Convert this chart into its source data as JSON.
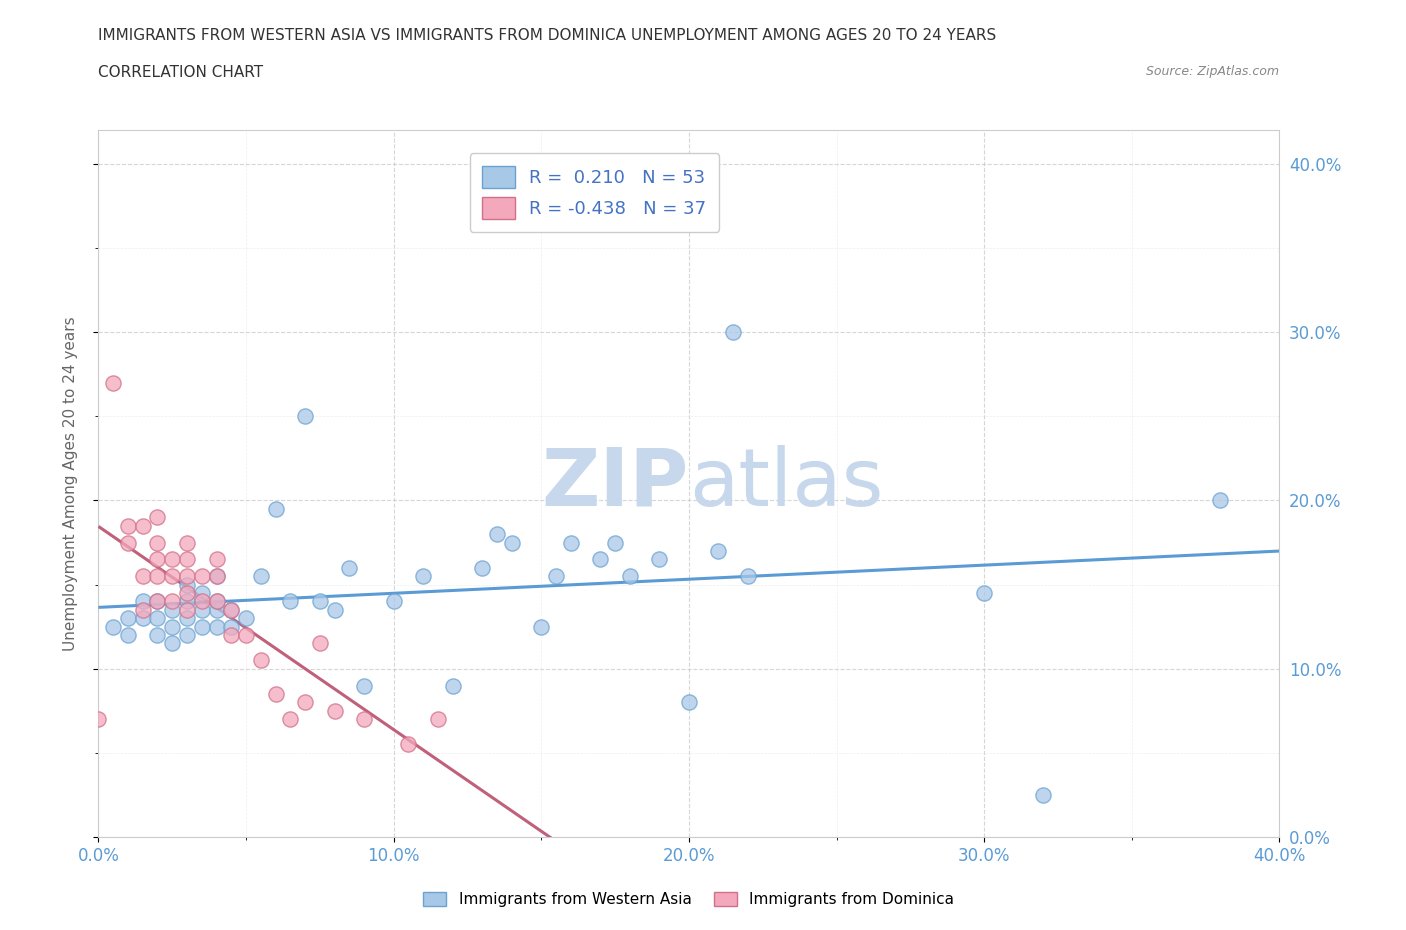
{
  "title_line1": "IMMIGRANTS FROM WESTERN ASIA VS IMMIGRANTS FROM DOMINICA UNEMPLOYMENT AMONG AGES 20 TO 24 YEARS",
  "title_line2": "CORRELATION CHART",
  "source_text": "Source: ZipAtlas.com",
  "xlabel_label": "Immigrants from Western Asia",
  "ylabel_label": "Unemployment Among Ages 20 to 24 years",
  "xmin": 0.0,
  "xmax": 0.4,
  "ymin": 0.0,
  "ymax": 0.42,
  "xtick_vals": [
    0.0,
    0.1,
    0.2,
    0.3,
    0.4
  ],
  "ytick_vals": [
    0.0,
    0.1,
    0.2,
    0.3,
    0.4
  ],
  "ytick_minor_vals": [
    0.05,
    0.15,
    0.25,
    0.35
  ],
  "blue_R": 0.21,
  "blue_N": 53,
  "pink_R": -0.438,
  "pink_N": 37,
  "blue_color": "#A8C8E8",
  "pink_color": "#F4A8BC",
  "blue_edge_color": "#6BA3D0",
  "pink_edge_color": "#D0708A",
  "blue_line_color": "#5B9BD5",
  "pink_line_color": "#C0607A",
  "watermark_color": "#C8D8EC",
  "background_color": "#FFFFFF",
  "blue_scatter_x": [
    0.005,
    0.01,
    0.01,
    0.015,
    0.015,
    0.02,
    0.02,
    0.02,
    0.025,
    0.025,
    0.025,
    0.03,
    0.03,
    0.03,
    0.03,
    0.035,
    0.035,
    0.035,
    0.04,
    0.04,
    0.04,
    0.04,
    0.045,
    0.045,
    0.05,
    0.055,
    0.06,
    0.065,
    0.07,
    0.075,
    0.08,
    0.085,
    0.09,
    0.1,
    0.11,
    0.12,
    0.13,
    0.135,
    0.14,
    0.15,
    0.155,
    0.16,
    0.17,
    0.175,
    0.18,
    0.19,
    0.2,
    0.21,
    0.215,
    0.22,
    0.3,
    0.32,
    0.38
  ],
  "blue_scatter_y": [
    0.125,
    0.12,
    0.13,
    0.13,
    0.14,
    0.12,
    0.13,
    0.14,
    0.115,
    0.125,
    0.135,
    0.12,
    0.13,
    0.14,
    0.15,
    0.125,
    0.135,
    0.145,
    0.125,
    0.135,
    0.14,
    0.155,
    0.125,
    0.135,
    0.13,
    0.155,
    0.195,
    0.14,
    0.25,
    0.14,
    0.135,
    0.16,
    0.09,
    0.14,
    0.155,
    0.09,
    0.16,
    0.18,
    0.175,
    0.125,
    0.155,
    0.175,
    0.165,
    0.175,
    0.155,
    0.165,
    0.08,
    0.17,
    0.3,
    0.155,
    0.145,
    0.025,
    0.2
  ],
  "pink_scatter_x": [
    0.0,
    0.005,
    0.01,
    0.01,
    0.015,
    0.015,
    0.015,
    0.02,
    0.02,
    0.02,
    0.02,
    0.02,
    0.025,
    0.025,
    0.025,
    0.03,
    0.03,
    0.03,
    0.03,
    0.03,
    0.035,
    0.035,
    0.04,
    0.04,
    0.04,
    0.045,
    0.045,
    0.05,
    0.055,
    0.06,
    0.065,
    0.07,
    0.075,
    0.08,
    0.09,
    0.105,
    0.115
  ],
  "pink_scatter_y": [
    0.07,
    0.27,
    0.175,
    0.185,
    0.135,
    0.155,
    0.185,
    0.14,
    0.155,
    0.165,
    0.175,
    0.19,
    0.14,
    0.155,
    0.165,
    0.135,
    0.145,
    0.155,
    0.165,
    0.175,
    0.14,
    0.155,
    0.14,
    0.155,
    0.165,
    0.12,
    0.135,
    0.12,
    0.105,
    0.085,
    0.07,
    0.08,
    0.115,
    0.075,
    0.07,
    0.055,
    0.07
  ]
}
